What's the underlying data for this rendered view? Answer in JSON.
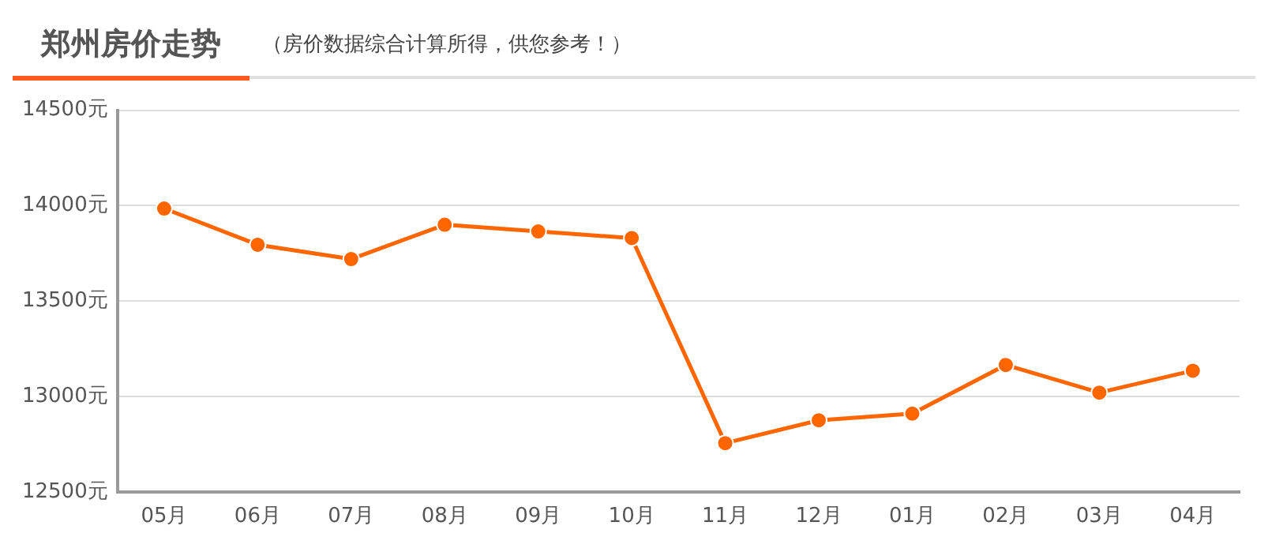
{
  "chart_data": {
    "type": "line",
    "title": "郑州房价走势",
    "subtitle": "（房价数据综合计算所得，供您参考！）",
    "categories": [
      "05月",
      "06月",
      "07月",
      "08月",
      "09月",
      "10月",
      "11月",
      "12月",
      "01月",
      "02月",
      "03月",
      "04月"
    ],
    "series": [
      {
        "color": "#ff6600",
        "values": [
          13985,
          13795,
          13720,
          13900,
          13865,
          13830,
          12755,
          12875,
          12910,
          13165,
          13020,
          13135
        ]
      }
    ],
    "ylim": [
      12500,
      14500
    ],
    "yticks": [
      {
        "value": 12500,
        "label": "12500元"
      },
      {
        "value": 13000,
        "label": "13000元"
      },
      {
        "value": 13500,
        "label": "13500元"
      },
      {
        "value": 14000,
        "label": "14000元"
      },
      {
        "value": 14500,
        "label": "14500元"
      }
    ],
    "grid": "y",
    "legend": false,
    "marker": "circle",
    "line_style": "solid"
  }
}
